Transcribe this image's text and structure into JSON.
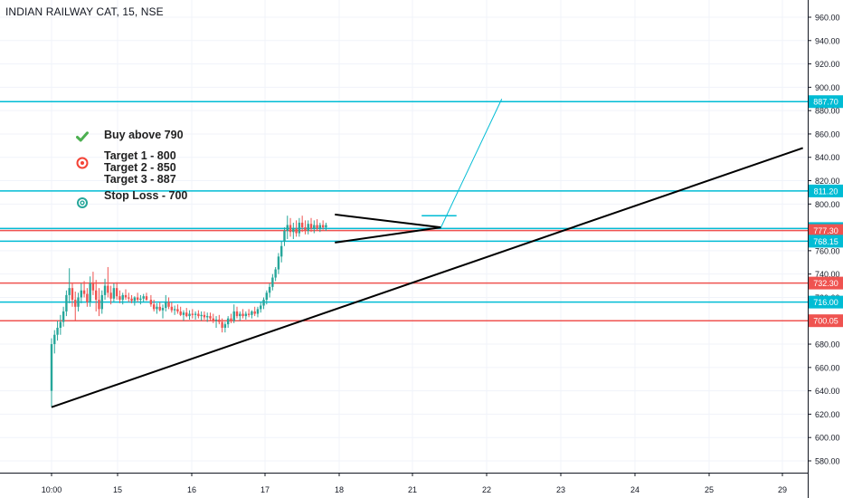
{
  "chart_data": {
    "type": "candlestick",
    "title": "INDIAN RAILWAY CAT, 15, NSE",
    "x_tick_labels": [
      "10:00",
      "15",
      "16",
      "17",
      "18",
      "21",
      "22",
      "23",
      "24",
      "25",
      "29"
    ],
    "y_ticks": [
      580,
      600,
      620,
      640,
      660,
      680,
      700,
      720,
      740,
      760,
      780,
      800,
      820,
      840,
      860,
      880,
      900,
      920,
      940,
      960
    ],
    "y_tick_labels": [
      "580.00",
      "600.00",
      "620.00",
      "640.00",
      "660.00",
      "680.00",
      "700.00",
      "720.00",
      "740.00",
      "760.00",
      "780.00",
      "800.00",
      "820.00",
      "840.00",
      "860.00",
      "880.00",
      "900.00",
      "920.00",
      "940.00",
      "960.00"
    ],
    "ylim": [
      567,
      970
    ],
    "grid": true,
    "up_color": "#26a69a",
    "down_color": "#ef5350",
    "horizontal_levels": [
      {
        "value": 887.7,
        "label": "887.70",
        "color": "#00bcd4"
      },
      {
        "value": 811.2,
        "label": "811.20",
        "color": "#00bcd4"
      },
      {
        "value": 779.0,
        "label": "779.00",
        "color": "#00bcd4"
      },
      {
        "value": 777.3,
        "label": "777.30",
        "color": "#ef5350"
      },
      {
        "value": 768.15,
        "label": "768.15",
        "color": "#00bcd4"
      },
      {
        "value": 732.3,
        "label": "732.30",
        "color": "#ef5350"
      },
      {
        "value": 716.0,
        "label": "716.00",
        "color": "#00bcd4"
      },
      {
        "value": 700.05,
        "label": "700.05",
        "color": "#ef5350"
      }
    ],
    "trendline": {
      "from": [
        0,
        626
      ],
      "to": [
        1013,
        848
      ],
      "color": "#000000"
    },
    "projection_line": {
      "from": [
        525,
        780
      ],
      "to": [
        607,
        890
      ],
      "color": "#00bcd4"
    },
    "pennant": {
      "upper": [
        [
          382,
          791
        ],
        [
          525,
          780
        ]
      ],
      "lower": [
        [
          382,
          767
        ],
        [
          525,
          780
        ]
      ],
      "color": "#000000"
    },
    "breakout_marker": {
      "from": [
        499,
        790
      ],
      "to": [
        546,
        790
      ],
      "color": "#00bcd4"
    },
    "ohlc": [
      [
        0,
        640,
        685,
        626,
        680
      ],
      [
        4,
        680,
        692,
        672,
        688
      ],
      [
        8,
        688,
        700,
        683,
        694
      ],
      [
        12,
        694,
        705,
        688,
        699
      ],
      [
        16,
        699,
        712,
        695,
        708
      ],
      [
        20,
        708,
        726,
        704,
        722
      ],
      [
        24,
        722,
        745,
        715,
        728
      ],
      [
        28,
        728,
        732,
        712,
        718
      ],
      [
        32,
        718,
        725,
        700,
        712
      ],
      [
        36,
        712,
        724,
        708,
        720
      ],
      [
        40,
        720,
        732,
        715,
        726
      ],
      [
        44,
        726,
        734,
        720,
        723
      ],
      [
        48,
        723,
        728,
        712,
        716
      ],
      [
        52,
        716,
        738,
        712,
        732
      ],
      [
        56,
        732,
        742,
        722,
        726
      ],
      [
        60,
        726,
        735,
        708,
        718
      ],
      [
        64,
        718,
        728,
        704,
        710
      ],
      [
        68,
        710,
        726,
        706,
        722
      ],
      [
        72,
        722,
        736,
        718,
        730
      ],
      [
        76,
        730,
        746,
        720,
        724
      ],
      [
        80,
        724,
        730,
        714,
        719
      ],
      [
        84,
        719,
        732,
        716,
        728
      ],
      [
        88,
        728,
        733,
        718,
        721
      ],
      [
        92,
        721,
        726,
        715,
        718
      ],
      [
        96,
        718,
        724,
        714,
        722
      ],
      [
        100,
        722,
        727,
        718,
        720
      ],
      [
        104,
        720,
        724,
        716,
        719
      ],
      [
        108,
        719,
        722,
        715,
        717
      ],
      [
        112,
        717,
        721,
        713,
        720
      ],
      [
        116,
        720,
        724,
        716,
        718
      ],
      [
        120,
        718,
        722,
        714,
        719
      ],
      [
        124,
        719,
        723,
        716,
        721
      ],
      [
        128,
        721,
        724,
        717,
        718
      ],
      [
        134,
        718,
        722,
        712,
        714
      ],
      [
        138,
        714,
        718,
        708,
        710
      ],
      [
        142,
        710,
        715,
        706,
        712
      ],
      [
        146,
        712,
        716,
        708,
        709
      ],
      [
        150,
        709,
        714,
        702,
        711
      ],
      [
        154,
        711,
        722,
        708,
        716
      ],
      [
        158,
        716,
        720,
        710,
        712
      ],
      [
        162,
        712,
        716,
        707,
        709
      ],
      [
        166,
        709,
        713,
        705,
        710
      ],
      [
        170,
        710,
        714,
        706,
        708
      ],
      [
        174,
        708,
        712,
        704,
        705
      ],
      [
        178,
        705,
        709,
        700,
        707
      ],
      [
        182,
        707,
        711,
        703,
        704
      ],
      [
        186,
        704,
        709,
        701,
        706
      ],
      [
        190,
        706,
        710,
        702,
        705
      ],
      [
        194,
        705,
        708,
        701,
        706
      ],
      [
        198,
        706,
        709,
        702,
        704
      ],
      [
        202,
        704,
        708,
        700,
        705
      ],
      [
        206,
        705,
        708,
        701,
        703
      ],
      [
        210,
        703,
        707,
        699,
        704
      ],
      [
        214,
        704,
        707,
        700,
        702
      ],
      [
        218,
        702,
        706,
        698,
        700
      ],
      [
        222,
        700,
        704,
        694,
        701
      ],
      [
        226,
        701,
        705,
        697,
        699
      ],
      [
        230,
        699,
        702,
        690,
        694
      ],
      [
        234,
        694,
        699,
        690,
        697
      ],
      [
        238,
        697,
        704,
        694,
        702
      ],
      [
        242,
        702,
        706,
        698,
        700
      ],
      [
        246,
        700,
        714,
        698,
        708
      ],
      [
        250,
        708,
        712,
        702,
        704
      ],
      [
        254,
        704,
        708,
        700,
        706
      ],
      [
        258,
        706,
        710,
        702,
        704
      ],
      [
        262,
        704,
        708,
        701,
        706
      ],
      [
        266,
        706,
        710,
        703,
        705
      ],
      [
        270,
        705,
        709,
        702,
        708
      ],
      [
        274,
        708,
        712,
        704,
        706
      ],
      [
        278,
        706,
        712,
        703,
        710
      ],
      [
        282,
        710,
        716,
        707,
        713
      ],
      [
        286,
        713,
        720,
        710,
        718
      ],
      [
        290,
        718,
        726,
        714,
        724
      ],
      [
        294,
        724,
        732,
        720,
        729
      ],
      [
        298,
        729,
        740,
        726,
        737
      ],
      [
        302,
        737,
        746,
        734,
        744
      ],
      [
        306,
        744,
        758,
        740,
        755
      ],
      [
        310,
        755,
        768,
        750,
        764
      ],
      [
        314,
        768,
        780,
        764,
        777
      ],
      [
        318,
        777,
        790,
        770,
        782
      ],
      [
        322,
        782,
        788,
        772,
        776
      ],
      [
        326,
        776,
        784,
        770,
        779
      ],
      [
        330,
        779,
        786,
        772,
        775
      ],
      [
        334,
        775,
        788,
        772,
        784
      ],
      [
        338,
        784,
        790,
        776,
        780
      ],
      [
        342,
        780,
        786,
        774,
        777
      ],
      [
        346,
        777,
        786,
        774,
        783
      ],
      [
        350,
        783,
        788,
        776,
        779
      ],
      [
        354,
        779,
        786,
        775,
        782
      ],
      [
        358,
        782,
        787,
        777,
        779
      ],
      [
        362,
        779,
        784,
        776,
        782
      ],
      [
        366,
        782,
        786,
        778,
        780
      ],
      [
        370,
        780,
        784,
        777,
        782
      ]
    ],
    "annotations": [
      {
        "icon": "check",
        "color": "#4caf50",
        "text": "Buy above 790"
      },
      {
        "icon": "target",
        "color": "#f44336",
        "text": "Target 1 - 800\nTarget 2 - 850\nTarget 3 - 887"
      },
      {
        "icon": "stop",
        "color": "#26a69a",
        "text": "Stop Loss - 700"
      }
    ]
  }
}
